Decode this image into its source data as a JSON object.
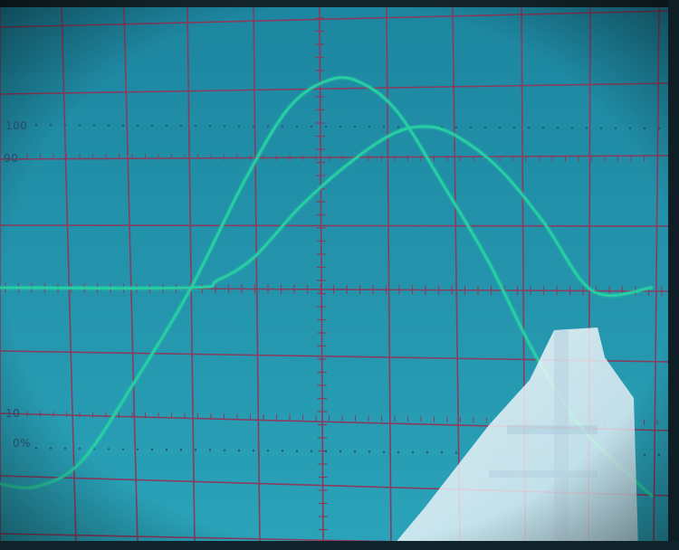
{
  "screen_labels": {
    "level_100": "100",
    "level_90": "90",
    "level_10": "10",
    "level_0": "0%"
  },
  "colors": {
    "screen_top": "#1d8aa4",
    "screen_bottom": "#2aa2b8",
    "grid": "#8a3c5e",
    "trace": "#27d0a3",
    "reference": "#254868",
    "bezel": "#1a2a30"
  },
  "traces": [
    {
      "name": "",
      "description_points": [
        [
          0,
          535
        ],
        [
          40,
          538
        ],
        [
          90,
          510
        ],
        [
          150,
          420
        ],
        [
          210,
          320
        ],
        [
          270,
          200
        ],
        [
          320,
          118
        ],
        [
          365,
          88
        ],
        [
          400,
          92
        ],
        [
          440,
          125
        ],
        [
          490,
          205
        ],
        [
          540,
          290
        ],
        [
          590,
          390
        ],
        [
          640,
          470
        ],
        [
          700,
          530
        ],
        [
          720,
          548
        ]
      ]
    },
    {
      "name": "",
      "description_points": [
        [
          0,
          318
        ],
        [
          210,
          318
        ],
        [
          240,
          310
        ],
        [
          280,
          285
        ],
        [
          330,
          230
        ],
        [
          380,
          185
        ],
        [
          430,
          150
        ],
        [
          465,
          140
        ],
        [
          500,
          148
        ],
        [
          550,
          185
        ],
        [
          600,
          245
        ],
        [
          655,
          322
        ],
        [
          720,
          318
        ]
      ]
    }
  ]
}
